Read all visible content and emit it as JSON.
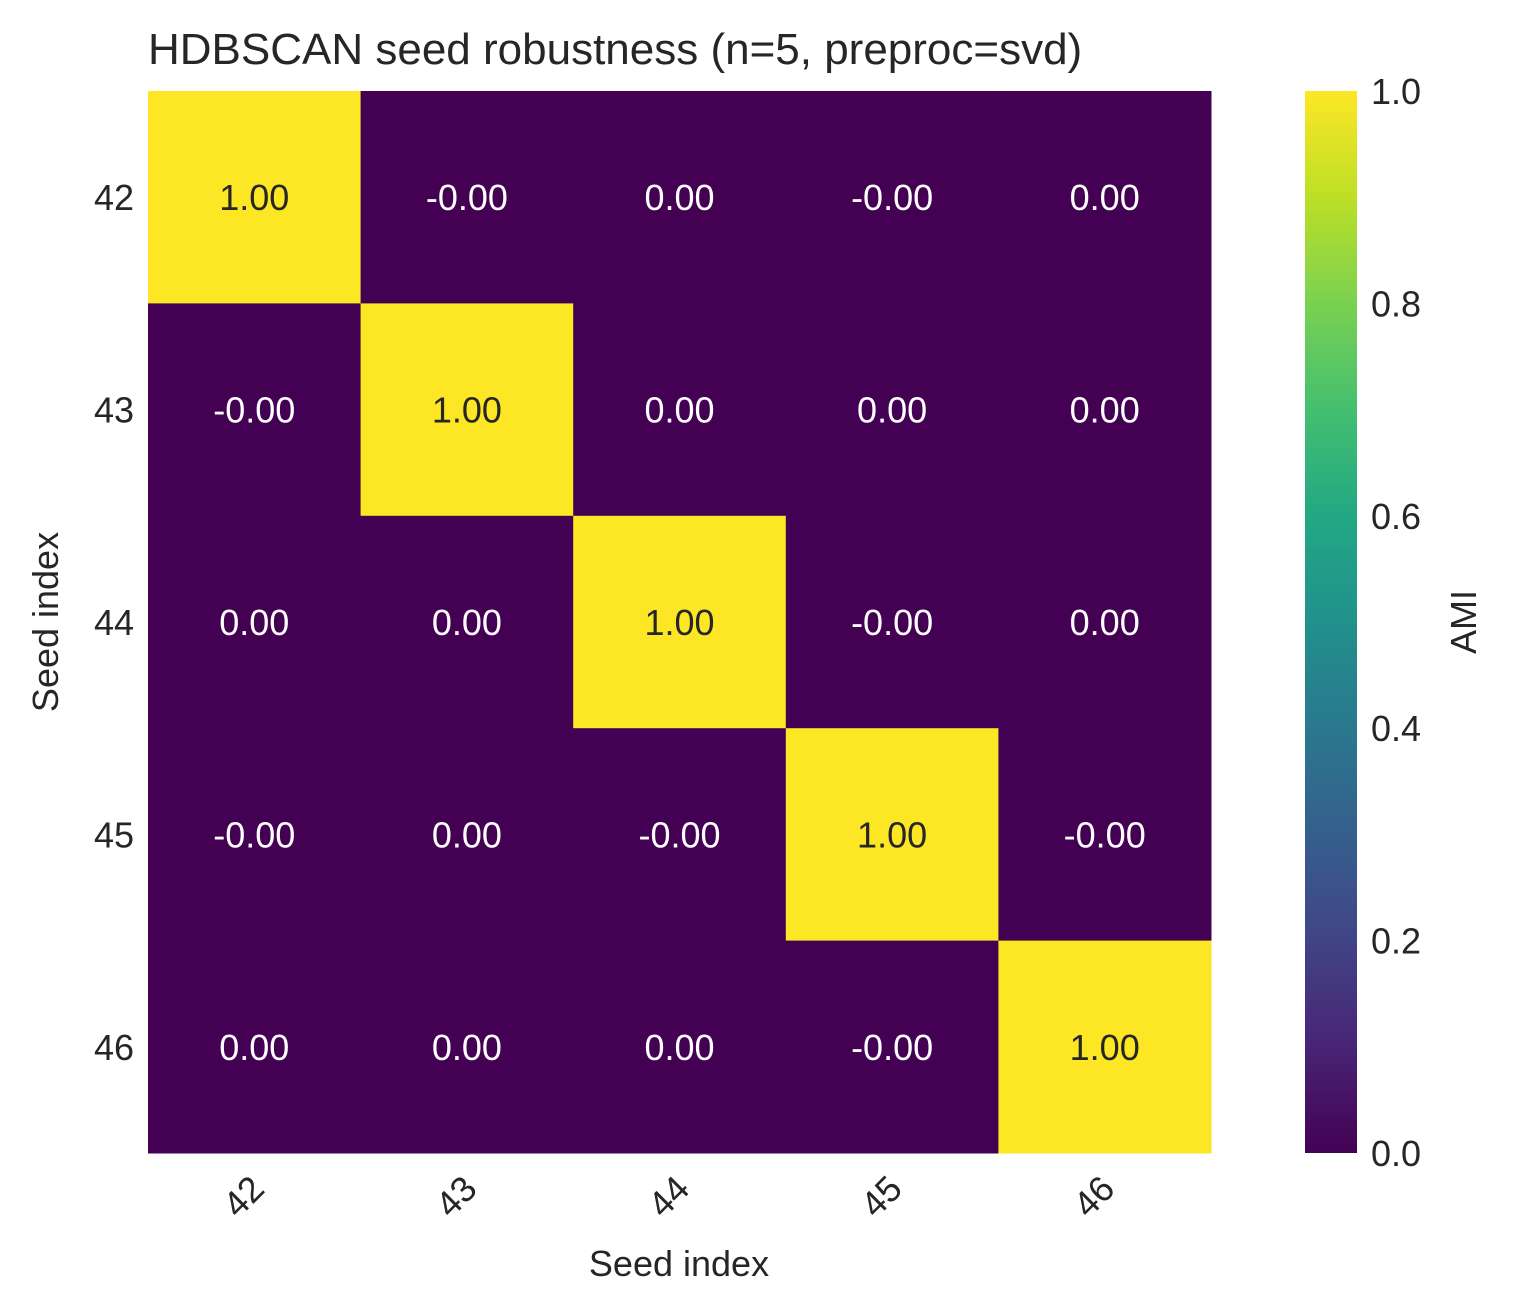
{
  "chart_data": {
    "type": "heatmap",
    "title": "HDBSCAN seed robustness (n=5, preproc=svd)",
    "xlabel": "Seed index",
    "ylabel": "Seed index",
    "x_categories": [
      "42",
      "43",
      "44",
      "45",
      "46"
    ],
    "y_categories": [
      "42",
      "43",
      "44",
      "45",
      "46"
    ],
    "values": [
      [
        1.0,
        -0.0,
        0.0,
        -0.0,
        0.0
      ],
      [
        -0.0,
        1.0,
        0.0,
        0.0,
        0.0
      ],
      [
        0.0,
        0.0,
        1.0,
        -0.0,
        0.0
      ],
      [
        -0.0,
        0.0,
        -0.0,
        1.0,
        -0.0
      ],
      [
        0.0,
        0.0,
        0.0,
        -0.0,
        1.0
      ]
    ],
    "cell_labels": [
      [
        "1.00",
        "-0.00",
        "0.00",
        "-0.00",
        "0.00"
      ],
      [
        "-0.00",
        "1.00",
        "0.00",
        "0.00",
        "0.00"
      ],
      [
        "0.00",
        "0.00",
        "1.00",
        "-0.00",
        "0.00"
      ],
      [
        "-0.00",
        "0.00",
        "-0.00",
        "1.00",
        "-0.00"
      ],
      [
        "0.00",
        "0.00",
        "0.00",
        "-0.00",
        "1.00"
      ]
    ],
    "colorbar": {
      "label": "AMI",
      "range": [
        0.0,
        1.0
      ],
      "ticks": [
        0.0,
        0.2,
        0.4,
        0.6,
        0.8,
        1.0
      ],
      "tick_labels": [
        "0.0",
        "0.2",
        "0.4",
        "0.6",
        "0.8",
        "1.0"
      ],
      "colormap": "viridis"
    },
    "colors": {
      "low": "#440154",
      "high": "#fde725",
      "text_on_low": "#ffffff",
      "text_on_high": "#262626"
    },
    "grid": false
  }
}
